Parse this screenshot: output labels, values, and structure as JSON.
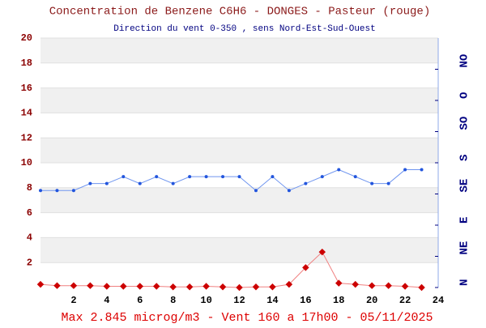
{
  "chart_data": {
    "type": "line",
    "title": "Concentration de Benzene C6H6  -   DONGES - Pasteur (rouge)",
    "subtitle": "Direction du vent 0-350 , sens Nord-Est-Sud-Ouest",
    "footer": "Max 2.845 microg/m3 - Vent 160  a 17h00 - 05/11/2025",
    "x": [
      0,
      1,
      2,
      3,
      4,
      5,
      6,
      7,
      8,
      9,
      10,
      11,
      12,
      13,
      14,
      15,
      16,
      17,
      18,
      19,
      20,
      21,
      22,
      23
    ],
    "xlim": [
      0,
      24
    ],
    "xticks": [
      2,
      4,
      6,
      8,
      10,
      12,
      14,
      16,
      18,
      20,
      22,
      24
    ],
    "ylim": [
      0,
      20
    ],
    "yticks": [
      2,
      4,
      6,
      8,
      10,
      12,
      14,
      16,
      18,
      20
    ],
    "y2lim": [
      0,
      360
    ],
    "y2ticks": [
      {
        "value": 0,
        "label": "N"
      },
      {
        "value": 45,
        "label": "NE"
      },
      {
        "value": 90,
        "label": "E"
      },
      {
        "value": 135,
        "label": "SE"
      },
      {
        "value": 180,
        "label": "S"
      },
      {
        "value": 225,
        "label": "SO"
      },
      {
        "value": 270,
        "label": "O"
      },
      {
        "value": 315,
        "label": "NO"
      }
    ],
    "grid": true,
    "series": [
      {
        "name": "Benzene",
        "color": "#cc0000",
        "axis": "y",
        "values": [
          0.25,
          0.15,
          0.15,
          0.15,
          0.1,
          0.1,
          0.1,
          0.1,
          0.05,
          0.05,
          0.1,
          0.05,
          0,
          0.05,
          0.05,
          0.25,
          1.6,
          2.845,
          0.35,
          0.25,
          0.15,
          0.15,
          0.1,
          0
        ]
      },
      {
        "name": "Vent",
        "color": "#2255dd",
        "axis": "y2",
        "values": [
          140,
          140,
          140,
          150,
          150,
          160,
          150,
          160,
          150,
          160,
          160,
          160,
          160,
          140,
          160,
          140,
          150,
          160,
          170,
          160,
          150,
          150,
          170,
          170
        ]
      }
    ]
  }
}
